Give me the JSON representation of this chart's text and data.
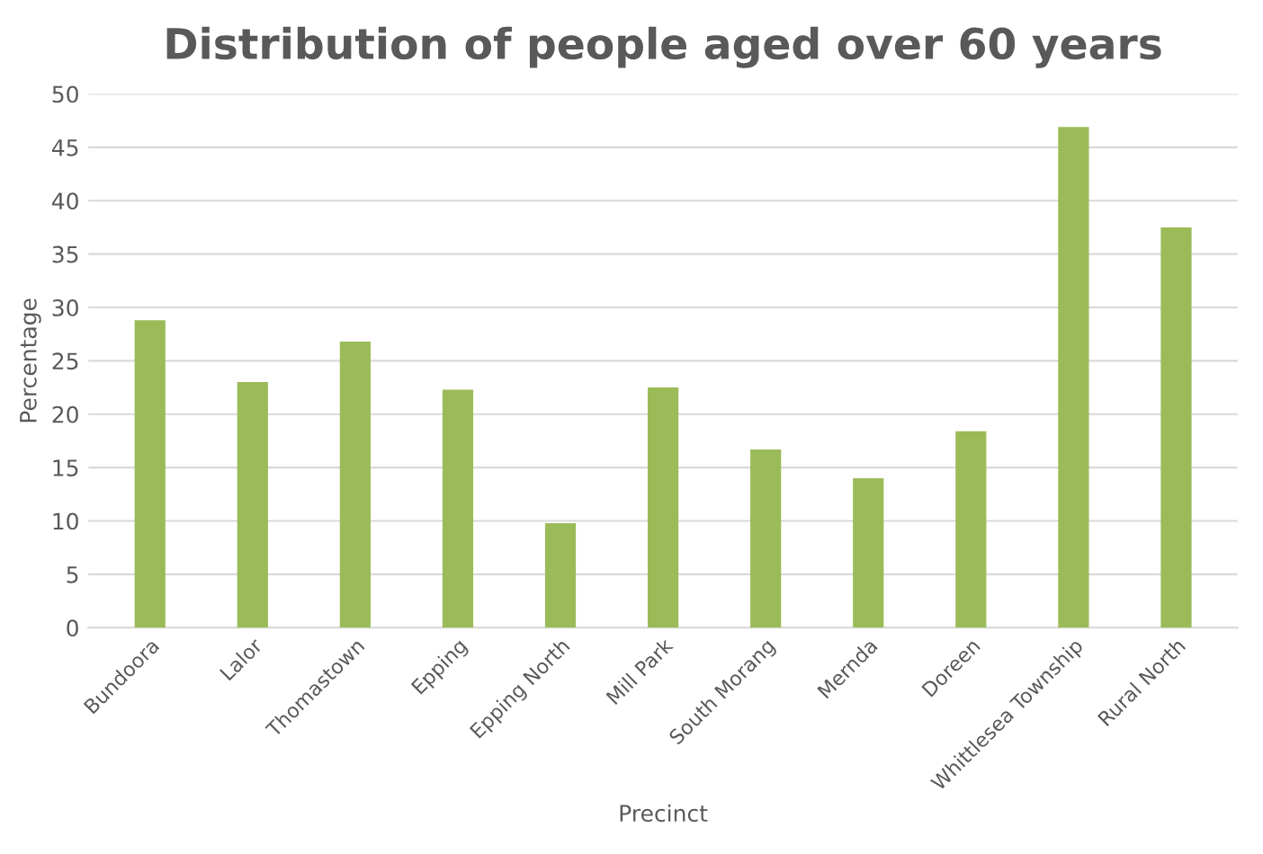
{
  "chart_data": {
    "type": "bar",
    "title": "Distribution of people aged over 60 years",
    "xlabel": "Precinct",
    "ylabel": "Percentage",
    "categories": [
      "Bundoora",
      "Lalor",
      "Thomastown",
      "Epping",
      "Epping North",
      "Mill Park",
      "South Morang",
      "Mernda",
      "Doreen",
      "Whittlesea Township",
      "Rural North"
    ],
    "values": [
      28.8,
      23,
      26.8,
      22.3,
      9.8,
      22.5,
      16.7,
      14,
      18.4,
      46.9,
      37.5
    ],
    "color": "#9bbb59",
    "ylim": [
      0,
      50
    ],
    "yticks": [
      0,
      5,
      10,
      15,
      20,
      25,
      30,
      35,
      40,
      45,
      50
    ],
    "grid": "y"
  }
}
